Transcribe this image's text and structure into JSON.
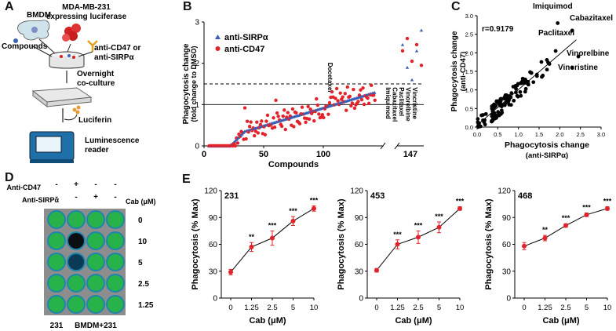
{
  "panels": {
    "A": "A",
    "B": "B",
    "C": "C",
    "D": "D",
    "E": "E"
  },
  "colors": {
    "red": "#e3232b",
    "blue": "#3b5fb5",
    "black": "#111111",
    "teal": "#1f8fb8",
    "green": "#27b24a",
    "grey": "#8a8a8a"
  },
  "workflow": {
    "bmdm": "BMDM",
    "mda": "MDA-MB-231",
    "mda2": "expressing luciferase",
    "compounds": "Compounds",
    "anti1": "anti-CD47 or",
    "anti2": "anti-SIRPα",
    "overnight1": "Overnight",
    "overnight2": "co-culture",
    "luciferin": "Luciferin",
    "lum1": "Luminescence",
    "lum2": "reader",
    "icons": [
      "macrophage-icon",
      "tumor-cells-icon",
      "antibody-icon",
      "culture-dish-icon",
      "well-plate-icon",
      "luciferin-icon",
      "luminometer-icon"
    ]
  },
  "panel_d": {
    "row_anti_cd47": "Anti-CD47",
    "row_anti_sirpa": "Anti-SIRPα",
    "cab_label": "Cab (μM)",
    "col_signs_cd47": [
      "-",
      "+",
      "-",
      "-"
    ],
    "col_signs_sirpa": [
      "-",
      "-",
      "+",
      "-"
    ],
    "row_labels": [
      "0",
      "10",
      "5",
      "2.5",
      "1.25"
    ],
    "bottom_left": "231",
    "bottom_right": "BMDM+231"
  },
  "chart_data": [
    {
      "id": "B",
      "type": "scatter",
      "ylabel": "Phagocytosis change",
      "ylabel2": "(fold change to DMSO)",
      "xlabel": "Compounds",
      "xticks": [
        "0",
        "50",
        "100",
        "147"
      ],
      "yticks": [
        "0",
        "1",
        "2",
        "3"
      ],
      "ylim": [
        0,
        3
      ],
      "xlim": [
        0,
        150
      ],
      "threshold": 1.5,
      "legend": [
        "anti-SIRPα",
        "anti-CD47"
      ],
      "annotations": {
        "docetaxel": "Docetaxel",
        "right": [
          "Imiquimod",
          "Cabazitaxel",
          "Paclitaxel",
          "Vinorelbine",
          "Vincristine"
        ]
      },
      "outliers_sirpa": [
        2.45,
        1.9,
        1.6,
        2.3,
        2.8
      ],
      "outliers_cd47": [
        2.3,
        2.6,
        2.05,
        2.45,
        1.95
      ]
    },
    {
      "id": "C",
      "type": "scatter",
      "title": "r=0.9179",
      "xlabel": "Phagocytosis change",
      "xlabel2": "(anti-SIRPα)",
      "ylabel": "Phagocytosis change",
      "ylabel2": "(anti-CD47)",
      "xticks": [
        "0.0",
        "0.5",
        "1.0",
        "1.5",
        "2.0",
        "2.5",
        "3.0"
      ],
      "yticks": [
        "0.0",
        "0.5",
        "1.0",
        "1.5",
        "2.0",
        "2.5",
        "3.0"
      ],
      "xlim": [
        0,
        3
      ],
      "ylim": [
        0,
        3
      ],
      "labels": [
        "Imiquimod",
        "Cabazitaxel",
        "Paclitaxel",
        "Vinorelbine",
        "Vincristine"
      ],
      "labeled_points": [
        [
          1.95,
          2.8
        ],
        [
          2.3,
          2.6
        ],
        [
          1.9,
          2.05
        ],
        [
          2.45,
          1.9
        ],
        [
          2.3,
          1.6
        ]
      ]
    },
    {
      "id": "E1",
      "type": "line",
      "title": "231",
      "categories": [
        "0",
        "1.25",
        "2.5",
        "5",
        "10"
      ],
      "values": [
        29,
        57,
        67,
        86,
        100
      ],
      "errors": [
        3,
        5,
        8,
        5,
        3
      ],
      "sig": [
        "",
        "**",
        "***",
        "***",
        "***"
      ],
      "xlabel": "Cab (μM)",
      "ylabel": "Phagocytosis (% Max)",
      "yticks": [
        "0",
        "30",
        "60",
        "90",
        "120"
      ],
      "ylim": [
        0,
        120
      ]
    },
    {
      "id": "E2",
      "type": "line",
      "title": "453",
      "categories": [
        "0",
        "1.25",
        "2.5",
        "5",
        "10"
      ],
      "values": [
        31,
        60,
        68,
        79,
        100
      ],
      "errors": [
        2,
        5,
        7,
        6,
        2
      ],
      "sig": [
        "",
        "***",
        "***",
        "***",
        "***"
      ],
      "xlabel": "Cab (μM)",
      "ylabel": "Phagocytosis (% Max)",
      "yticks": [
        "0",
        "30",
        "60",
        "90",
        "120"
      ],
      "ylim": [
        0,
        120
      ]
    },
    {
      "id": "E3",
      "type": "line",
      "title": "468",
      "categories": [
        "0",
        "1.25",
        "2.5",
        "5",
        "10"
      ],
      "values": [
        58,
        67,
        81,
        93,
        100
      ],
      "errors": [
        4,
        3,
        2,
        2,
        2
      ],
      "sig": [
        "",
        "**",
        "***",
        "***",
        "***"
      ],
      "xlabel": "Cab (μM)",
      "ylabel": "Phagocytosis (% Max)",
      "yticks": [
        "0",
        "30",
        "60",
        "90",
        "120"
      ],
      "ylim": [
        0,
        120
      ]
    }
  ]
}
